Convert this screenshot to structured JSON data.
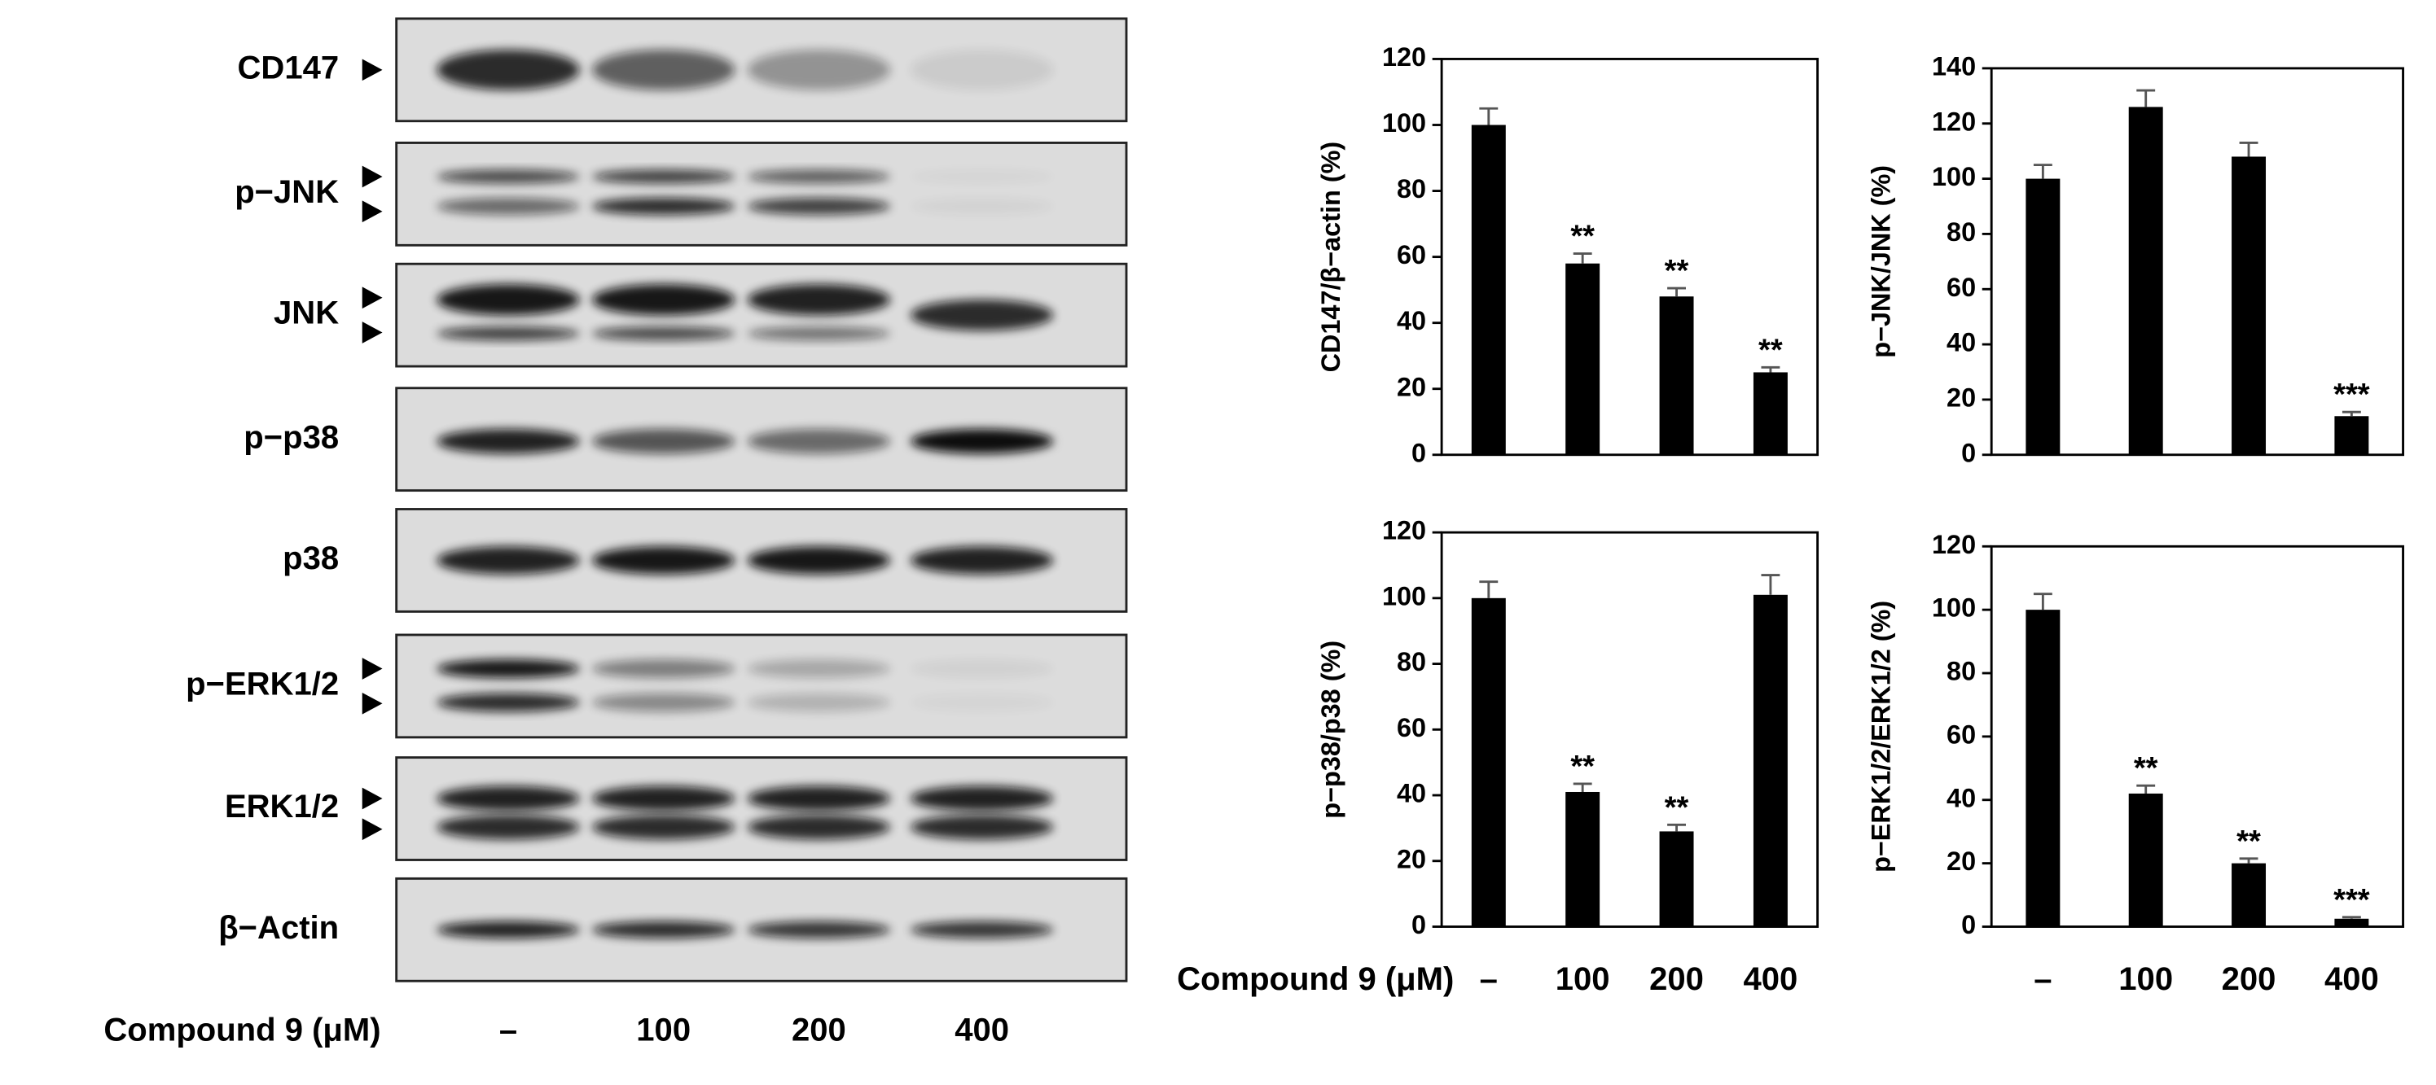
{
  "blots": {
    "labels": [
      "CD147",
      "p−JNK",
      "JNK",
      "p−p38",
      "p38",
      "p−ERK1/2",
      "ERK1/2",
      "β−Actin"
    ],
    "xlabel": "Compound 9 (μM)",
    "lanes": [
      "–",
      "100",
      "200",
      "400"
    ]
  },
  "chart_data": [
    {
      "type": "bar",
      "ylabel": "CD147/β−actin (%)",
      "categories": [
        null,
        null,
        null,
        null
      ],
      "values": [
        100,
        58,
        48,
        25
      ],
      "errors": [
        5,
        3,
        2.5,
        1.5
      ],
      "annotations": [
        null,
        "**",
        "**",
        "**"
      ],
      "color": "#000000",
      "ylim": [
        0,
        120
      ],
      "yticks": [
        0,
        20,
        40,
        60,
        80,
        100,
        120
      ]
    },
    {
      "type": "bar",
      "ylabel": "p−JNK/JNK (%)",
      "categories": [
        null,
        null,
        null,
        null
      ],
      "values": [
        100,
        126,
        108,
        14
      ],
      "errors": [
        5,
        6,
        5,
        1.5
      ],
      "annotations": [
        null,
        null,
        null,
        "***"
      ],
      "color": "#000000",
      "ylim": [
        0,
        140
      ],
      "yticks": [
        0,
        20,
        40,
        60,
        80,
        100,
        120,
        140
      ]
    },
    {
      "type": "bar",
      "ylabel": "p−p38/p38 (%)",
      "xlabel": "Compound 9 (μM)",
      "categories": [
        "–",
        "100",
        "200",
        "400"
      ],
      "values": [
        100,
        41,
        29,
        101
      ],
      "errors": [
        5,
        2.5,
        2,
        6
      ],
      "annotations": [
        null,
        "**",
        "**",
        null
      ],
      "color": "#000000",
      "ylim": [
        0,
        120
      ],
      "yticks": [
        0,
        20,
        40,
        60,
        80,
        100,
        120
      ]
    },
    {
      "type": "bar",
      "ylabel": "p−ERK1/2/ERK1/2 (%)",
      "categories": [
        "–",
        "100",
        "200",
        "400"
      ],
      "values": [
        100,
        42,
        20,
        2.5
      ],
      "errors": [
        5,
        2.5,
        1.5,
        0.5
      ],
      "annotations": [
        null,
        "**",
        "**",
        "***"
      ],
      "color": "#000000",
      "ylim": [
        0,
        120
      ],
      "yticks": [
        0,
        20,
        40,
        60,
        80,
        100,
        120
      ]
    }
  ]
}
